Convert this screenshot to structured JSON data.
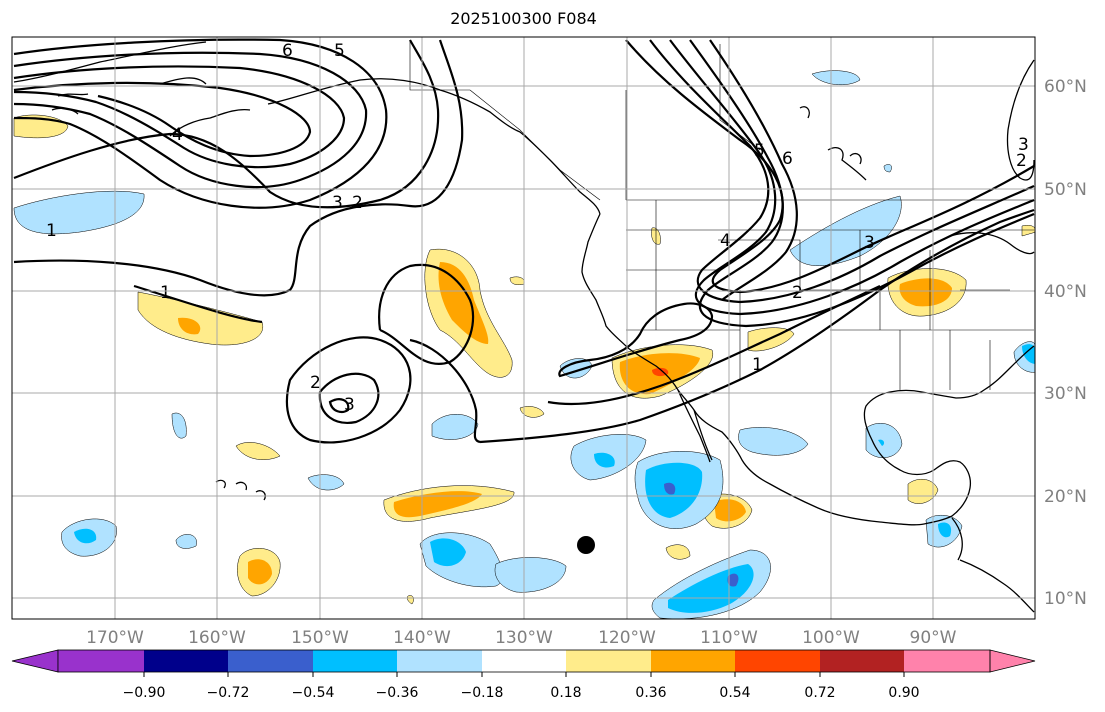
{
  "title": "2025100300 F084",
  "map": {
    "lon_labels": [
      "170°W",
      "160°W",
      "150°W",
      "140°W",
      "130°W",
      "120°W",
      "110°W",
      "100°W",
      "90°W"
    ],
    "lat_labels": [
      "60°N",
      "50°N",
      "40°N",
      "30°N",
      "20°N",
      "10°N"
    ],
    "contour_labels": [
      "6",
      "5",
      "4",
      "3",
      "2",
      "1",
      "1",
      "2",
      "3",
      "2",
      "3",
      "4",
      "5",
      "6",
      "1",
      "2",
      "3"
    ],
    "marker": "black-dot",
    "grid": true
  },
  "colorbar": {
    "ticks": [
      "−0.90",
      "−0.72",
      "−0.54",
      "−0.36",
      "−0.18",
      "0.18",
      "0.36",
      "0.54",
      "0.72",
      "0.90"
    ],
    "colors": [
      "#9932cc",
      "#00008b",
      "#3a5fcd",
      "#00bfff",
      "#b0e2ff",
      "#ffffff",
      "#ffec8b",
      "#ffa500",
      "#ff4500",
      "#b22222",
      "#ff82ab"
    ],
    "extend": "both"
  }
}
